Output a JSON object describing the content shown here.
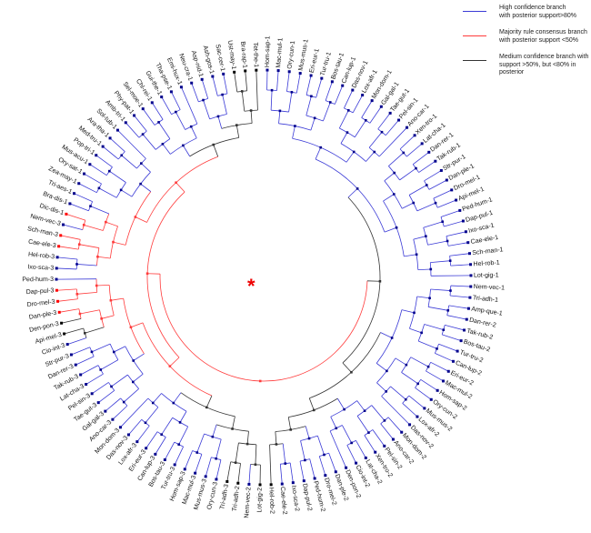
{
  "colors": {
    "high": "#3a3ad6",
    "low": "#ff3b3b",
    "medium": "#333333",
    "high_node": "#00008b"
  },
  "legend": [
    {
      "key": "high",
      "text": "High confidence branch\nwith posterior support>80%"
    },
    {
      "key": "low",
      "text": "Majority rule consensus branch\nwith posterior support <50%"
    },
    {
      "key": "medium",
      "text": "Medium confidence branch with\nsupport >50%, but <80% in posterior"
    }
  ],
  "root_marker": "*",
  "leaves": [
    {
      "label": "Hom-sap-1",
      "support": "high"
    },
    {
      "label": "Mac-mul-1",
      "support": "high"
    },
    {
      "label": "Ory-cun-1",
      "support": "high"
    },
    {
      "label": "Mus-mus-1",
      "support": "high"
    },
    {
      "label": "Eri-eur-1",
      "support": "high"
    },
    {
      "label": "Tur-tru-1",
      "support": "high"
    },
    {
      "label": "Bos-tau-1",
      "support": "high"
    },
    {
      "label": "Can-lup-1",
      "support": "high"
    },
    {
      "label": "Das-nov-1",
      "support": "high"
    },
    {
      "label": "Lox-afr-1",
      "support": "high"
    },
    {
      "label": "Mon-dom-1",
      "support": "high"
    },
    {
      "label": "Gal-gal-1",
      "support": "high"
    },
    {
      "label": "Tae-gut-1",
      "support": "high"
    },
    {
      "label": "Pel-sin-1",
      "support": "high"
    },
    {
      "label": "Ano-car-1",
      "support": "high"
    },
    {
      "label": "Xen-tro-1",
      "support": "high"
    },
    {
      "label": "Lat-cha-1",
      "support": "high"
    },
    {
      "label": "Dan-rer-1",
      "support": "high"
    },
    {
      "label": "Tak-rub-1",
      "support": "high"
    },
    {
      "label": "Str-pur-1",
      "support": "high"
    },
    {
      "label": "Dan-ple-1",
      "support": "high"
    },
    {
      "label": "Dro-mel-1",
      "support": "high"
    },
    {
      "label": "Api-mel-1",
      "support": "high"
    },
    {
      "label": "Ped-hum-1",
      "support": "high"
    },
    {
      "label": "Dap-pul-1",
      "support": "high"
    },
    {
      "label": "Ixo-sca-1",
      "support": "high"
    },
    {
      "label": "Cae-ele-1",
      "support": "high"
    },
    {
      "label": "Sch-man-1",
      "support": "high"
    },
    {
      "label": "Hel-rob-1",
      "support": "high"
    },
    {
      "label": "Lot-gig-1",
      "support": "high"
    },
    {
      "label": "Nem-vec-1",
      "support": "high"
    },
    {
      "label": "Tri-adh-1",
      "support": "high"
    },
    {
      "label": "Amp-que-1",
      "support": "high"
    },
    {
      "label": "Dan-rer-2",
      "support": "high"
    },
    {
      "label": "Tak-rub-2",
      "support": "high"
    },
    {
      "label": "Bos-tau-2",
      "support": "high"
    },
    {
      "label": "Tur-tru-2",
      "support": "high"
    },
    {
      "label": "Can-lup-2",
      "support": "high"
    },
    {
      "label": "Eri-eur-2",
      "support": "high"
    },
    {
      "label": "Mac-mul-2",
      "support": "high"
    },
    {
      "label": "Hom-sap-2",
      "support": "high"
    },
    {
      "label": "Ory-cun-2",
      "support": "high"
    },
    {
      "label": "Mus-mus-2",
      "support": "high"
    },
    {
      "label": "Lox-afr-2",
      "support": "high"
    },
    {
      "label": "Das-nov-2",
      "support": "high"
    },
    {
      "label": "Mon-dom-2",
      "support": "high"
    },
    {
      "label": "Ano-car-2",
      "support": "high"
    },
    {
      "label": "Pel-sin-2",
      "support": "high"
    },
    {
      "label": "Xen-tro-2",
      "support": "high"
    },
    {
      "label": "Lat-cha-2",
      "support": "high"
    },
    {
      "label": "Cio-int-2",
      "support": "high"
    },
    {
      "label": "Den-pon-2",
      "support": "high"
    },
    {
      "label": "Dan-ple-2",
      "support": "high"
    },
    {
      "label": "Dro-mel-2",
      "support": "high"
    },
    {
      "label": "Ped-hum-2",
      "support": "high"
    },
    {
      "label": "Dap-pul-2",
      "support": "high"
    },
    {
      "label": "Ixo-sca-2",
      "support": "high"
    },
    {
      "label": "Cae-ele-2",
      "support": "high"
    },
    {
      "label": "Hel-rob-2",
      "support": "medium"
    },
    {
      "label": "Lot-gig-2",
      "support": "medium"
    },
    {
      "label": "Nem-vec-2",
      "support": "high"
    },
    {
      "label": "Tri-adh-2",
      "support": "medium"
    },
    {
      "label": "Tri-adh-3",
      "support": "medium"
    },
    {
      "label": "Ory-cun-3",
      "support": "high"
    },
    {
      "label": "Mus-mus-3",
      "support": "high"
    },
    {
      "label": "Mac-mul-3",
      "support": "high"
    },
    {
      "label": "Hom-sap-3",
      "support": "high"
    },
    {
      "label": "Tur-tru-3",
      "support": "high"
    },
    {
      "label": "Bos-tau-3",
      "support": "high"
    },
    {
      "label": "Can-lup-3",
      "support": "high"
    },
    {
      "label": "Eri-eur-3",
      "support": "high"
    },
    {
      "label": "Lox-afr-3",
      "support": "high"
    },
    {
      "label": "Das-nov-3",
      "support": "high"
    },
    {
      "label": "Mon-dom-3",
      "support": "high"
    },
    {
      "label": "Ano-car-3",
      "support": "high"
    },
    {
      "label": "Gal-gal-3",
      "support": "high"
    },
    {
      "label": "Tae-gut-3",
      "support": "high"
    },
    {
      "label": "Pel-sin-3",
      "support": "high"
    },
    {
      "label": "Lat-cha-3",
      "support": "high"
    },
    {
      "label": "Tak-rub-3",
      "support": "high"
    },
    {
      "label": "Dan-rer-3",
      "support": "high"
    },
    {
      "label": "Str-pur-3",
      "support": "high"
    },
    {
      "label": "Cio-int-3",
      "support": "high"
    },
    {
      "label": "Api-mel-3",
      "support": "medium"
    },
    {
      "label": "Den-pon-3",
      "support": "medium"
    },
    {
      "label": "Dan-ple-3",
      "support": "low"
    },
    {
      "label": "Dro-mel-3",
      "support": "low"
    },
    {
      "label": "Dap-pul-3",
      "support": "low"
    },
    {
      "label": "Ped-hum-3",
      "support": "high"
    },
    {
      "label": "Ixo-sca-3",
      "support": "high"
    },
    {
      "label": "Hel-rob-3",
      "support": "high"
    },
    {
      "label": "Cae-ele-3",
      "support": "low"
    },
    {
      "label": "Sch-man-3",
      "support": "low"
    },
    {
      "label": "Nem-vec-3",
      "support": "high"
    },
    {
      "label": "Dic-dis-1",
      "support": "low"
    },
    {
      "label": "Bra-dis-1",
      "support": "high"
    },
    {
      "label": "Tri-aes-1",
      "support": "high"
    },
    {
      "label": "Zea-may-1",
      "support": "high"
    },
    {
      "label": "Ory-sat-1",
      "support": "high"
    },
    {
      "label": "Mus-acu-1",
      "support": "high"
    },
    {
      "label": "Pop-tri-1",
      "support": "high"
    },
    {
      "label": "Med-tru-1",
      "support": "high"
    },
    {
      "label": "Ara-tha-1",
      "support": "high"
    },
    {
      "label": "Sol-tub-1",
      "support": "high"
    },
    {
      "label": "Amb-tri-1",
      "support": "high"
    },
    {
      "label": "Phy-pat-1",
      "support": "high"
    },
    {
      "label": "Sel-moe-1",
      "support": "high"
    },
    {
      "label": "Chl-rei-1",
      "support": "high"
    },
    {
      "label": "Gui-the-1",
      "support": "high"
    },
    {
      "label": "Tha-pse-1",
      "support": "high"
    },
    {
      "label": "Emi-hux-1",
      "support": "high"
    },
    {
      "label": "Neu-cra-1",
      "support": "high"
    },
    {
      "label": "Asp-nid-1",
      "support": "high"
    },
    {
      "label": "Ash-gos-1",
      "support": "high"
    },
    {
      "label": "Sac-cer-1",
      "support": "high"
    },
    {
      "label": "Ust-may-1",
      "support": "medium"
    },
    {
      "label": "Bra-rap-1",
      "support": "medium"
    },
    {
      "label": "Tet-the-1",
      "support": "medium"
    }
  ]
}
